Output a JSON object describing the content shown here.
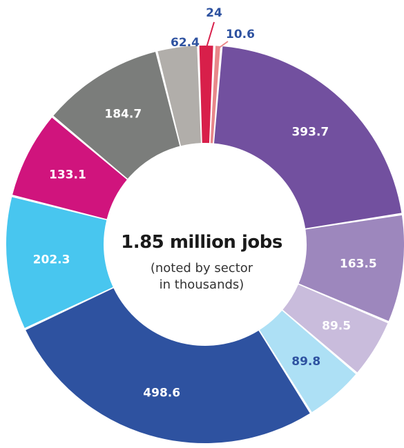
{
  "center": {
    "title": "1.85 million jobs",
    "subtitle_line1": "(noted by sector",
    "subtitle_line2": "in thousands)"
  },
  "chart_data": {
    "type": "donut",
    "total_label": "1.85 million jobs",
    "values": [
      24,
      10.6,
      393.7,
      163.5,
      89.5,
      89.8,
      498.6,
      202.3,
      133.1,
      184.7,
      62.4
    ],
    "labels": [
      "24",
      "10.6",
      "393.7",
      "163.5",
      "89.5",
      "89.8",
      "498.6",
      "202.3",
      "133.1",
      "184.7",
      "62.4"
    ],
    "colors": [
      "#d81f4a",
      "#e8878a",
      "#72509f",
      "#9d87bd",
      "#c9bcdc",
      "#ade0f5",
      "#2e52a0",
      "#48c6ef",
      "#d0147d",
      "#7b7d7b",
      "#b1aeaa"
    ],
    "label_colors": [
      "#2e52a0",
      "#2e52a0",
      "#ffffff",
      "#ffffff",
      "#ffffff",
      "#2e52a0",
      "#ffffff",
      "#ffffff",
      "#ffffff",
      "#ffffff",
      "#2e52a0"
    ],
    "label_placement": [
      "outside",
      "outside",
      "inside",
      "inside",
      "inside",
      "inside",
      "inside",
      "inside",
      "inside",
      "inside",
      "outside"
    ]
  }
}
